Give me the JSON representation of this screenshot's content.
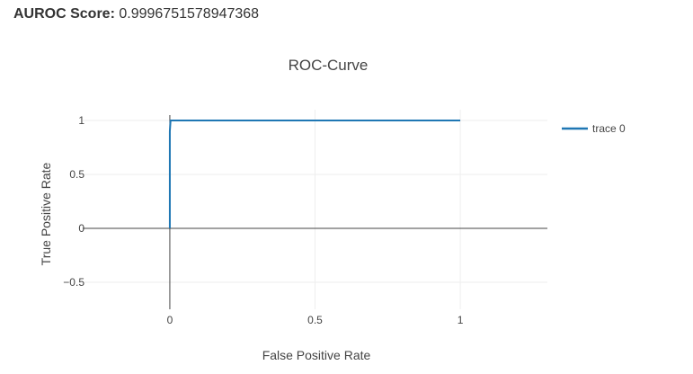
{
  "header": {
    "score_label": "AUROC Score:",
    "score_value": "0.9996751578947368"
  },
  "chart_data": {
    "type": "line",
    "title": "ROC-Curve",
    "xlabel": "False Positive Rate",
    "ylabel": "True Positive Rate",
    "xlim": [
      -0.3,
      1.3
    ],
    "ylim": [
      -0.75,
      1.1
    ],
    "x_ticks": [
      0,
      0.5,
      1
    ],
    "x_tick_labels": [
      "0",
      "0.5",
      "1"
    ],
    "y_ticks": [
      -0.5,
      0,
      0.5,
      1
    ],
    "y_tick_labels": [
      "−0.5",
      "0",
      "0.5",
      "1"
    ],
    "grid": true,
    "legend_position": "top-right",
    "series": [
      {
        "name": "trace 0",
        "color": "#1f77b4",
        "x": [
          0,
          0,
          0.0025,
          1
        ],
        "y": [
          0,
          0.9,
          1,
          1
        ]
      }
    ]
  }
}
